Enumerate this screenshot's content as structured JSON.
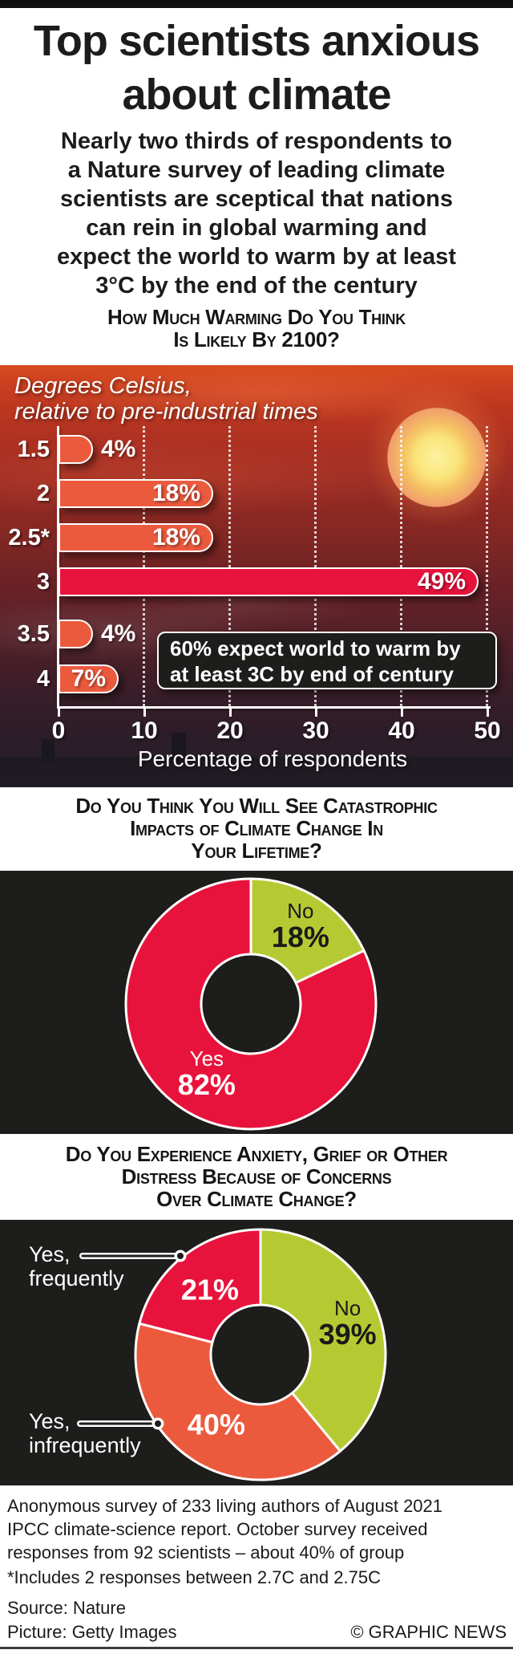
{
  "header": {
    "title": "Top scientists anxious\nabout climate",
    "intro": "Nearly two thirds of respondents to\na Nature survey of leading climate\nscientists are sceptical that nations\ncan rein in global warming and\nexpect the world to warm by at least\n3°C by the end of the century"
  },
  "colors": {
    "orange": "#ec5a3e",
    "crimson": "#e8133c",
    "green": "#b5ca32",
    "panel_black": "#1d1d1b",
    "white": "#ffffff"
  },
  "chart_data": [
    {
      "type": "bar",
      "title": "How Much Warming Do You Think\nIs Likely By 2100?",
      "unit_label": "Degrees Celsius,\nrelative to pre-industrial times",
      "categories": [
        "1.5",
        "2",
        "2.5*",
        "3",
        "3.5",
        "4"
      ],
      "values": [
        4,
        18,
        18,
        49,
        4,
        7
      ],
      "value_labels": [
        "4%",
        "18%",
        "18%",
        "49%",
        "4%",
        "7%"
      ],
      "bar_colors": [
        "#ec5a3e",
        "#ec5a3e",
        "#ec5a3e",
        "#e8133c",
        "#ec5a3e",
        "#ec5a3e"
      ],
      "xlabel": "Percentage of respondents",
      "xticks": [
        0,
        10,
        20,
        30,
        40,
        50
      ],
      "xlim": [
        0,
        50
      ],
      "gridlines": [
        10,
        20,
        30,
        40,
        50
      ],
      "grid_style": "dotted-vertical-white",
      "annotation": "60% expect world to warm by\nat least 3C by end of century",
      "legend": "none"
    },
    {
      "type": "pie",
      "subtype": "donut",
      "title": "Do You Think You Will See Catastrophic\nImpacts of Climate Change In\nYour Lifetime?",
      "slices": [
        {
          "label": "No",
          "value": 18,
          "color": "#b5ca32",
          "text_color": "#1a1a1a",
          "show_name": true
        },
        {
          "label": "Yes",
          "value": 82,
          "color": "#e8133c",
          "text_color": "#ffffff",
          "show_name": true
        }
      ],
      "start_angle": "12 o'clock, clockwise"
    },
    {
      "type": "pie",
      "subtype": "donut",
      "title": "Do You Experience Anxiety, Grief or Other\nDistress Because of Concerns\nOver Climate Change?",
      "slices": [
        {
          "label": "No",
          "value": 39,
          "color": "#b5ca32",
          "text_color": "#1a1a1a",
          "show_name": true
        },
        {
          "label": "Yes, infrequently",
          "value": 40,
          "color": "#ec5a3e",
          "text_color": "#ffffff",
          "show_name": false
        },
        {
          "label": "Yes, frequently",
          "value": 21,
          "color": "#e8133c",
          "text_color": "#ffffff",
          "show_name": false
        }
      ],
      "start_angle": "12 o'clock, clockwise",
      "callouts": [
        {
          "text": "Yes,\nfrequently"
        },
        {
          "text": "Yes,\ninfrequently"
        }
      ]
    }
  ],
  "footer": {
    "note": "Anonymous survey of 233 living authors of August 2021\nIPCC climate-science report. October survey received\nresponses from 92 scientists – about 40% of group",
    "asterisk_note": "*Includes 2 responses between 2.7C and 2.75C",
    "source": "Source: Nature",
    "picture": "Picture: Getty Images",
    "credit": "© GRAPHIC NEWS"
  }
}
